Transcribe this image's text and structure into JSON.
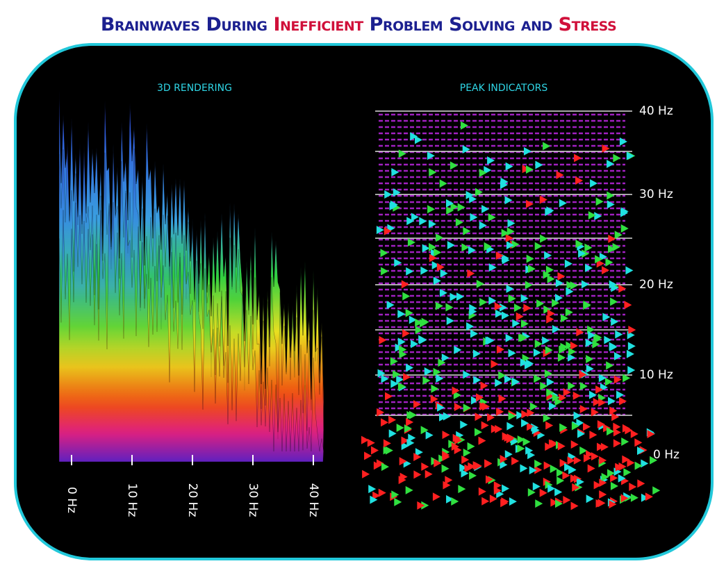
{
  "header": {
    "title_parts": [
      "Brainwaves During",
      "Inefficient",
      "Problem Solving and",
      "Stress"
    ]
  },
  "left_panel": {
    "label": "3D RENDERING",
    "axis_labels": [
      "0 Hz",
      "10 Hz",
      "20 Hz",
      "30 Hz",
      "40 Hz"
    ]
  },
  "right_panel": {
    "label": "PEAK INDICATORS",
    "axis_labels": [
      "40 Hz",
      "30 Hz",
      "20 Hz",
      "10 Hz",
      "0 Hz"
    ]
  }
}
